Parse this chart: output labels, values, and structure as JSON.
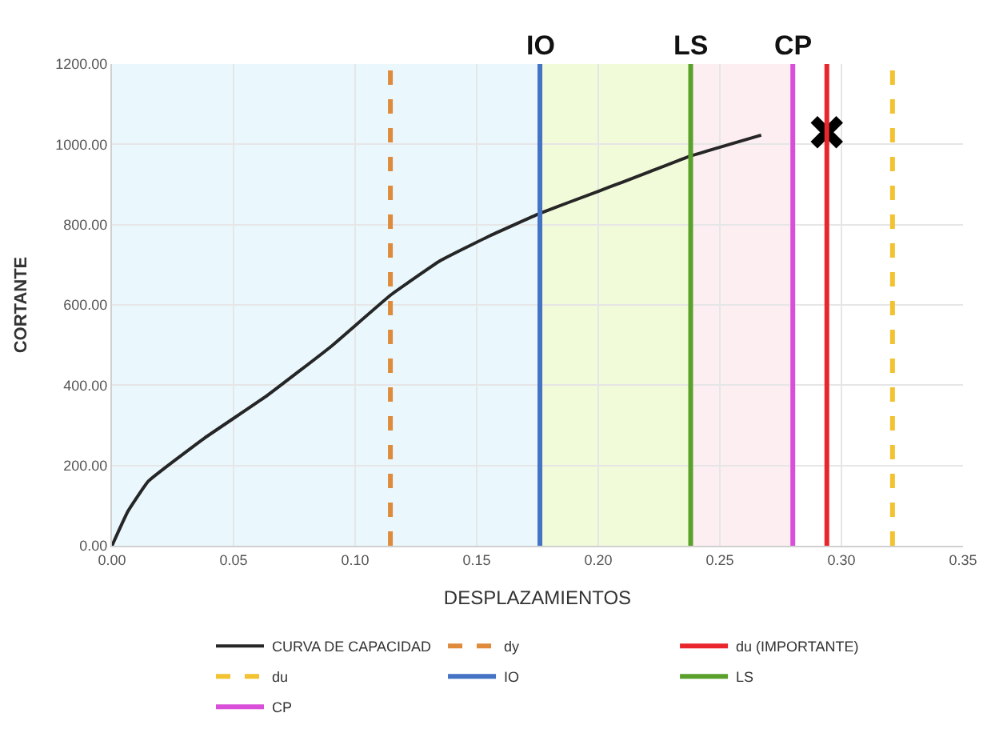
{
  "chart_data": {
    "type": "line",
    "xlabel": "DESPLAZAMIENTOS",
    "ylabel": "CORTANTE",
    "x": [
      0,
      0.0065,
      0.015,
      0.038,
      0.064,
      0.09,
      0.1145,
      0.135,
      0.155,
      0.176,
      0.2,
      0.22,
      0.238,
      0.267
    ],
    "series": [
      {
        "name": "CURVA DE CAPACIDAD",
        "color": "#262626",
        "values": [
          0,
          85,
          161,
          268,
          375,
          496,
          624,
          710,
          771,
          828,
          883,
          929,
          971,
          1023
        ]
      },
      {
        "type": "scatter",
        "color": "#000000",
        "marker": "cross",
        "x": [
          0.294
        ],
        "values": [
          1030
        ]
      }
    ],
    "ref_lines": [
      {
        "axis": "x",
        "value": 0.1145,
        "label": "dy",
        "color": "#e08a3c",
        "line_style": "dashed"
      },
      {
        "axis": "x",
        "value": 0.294,
        "label": "du (IMPORTANTE)",
        "color": "#e8262b",
        "line_style": "solid"
      },
      {
        "axis": "x",
        "value": 0.321,
        "label": "du",
        "color": "#f2c230",
        "line_style": "dashed"
      },
      {
        "axis": "x",
        "value": 0.176,
        "label": "IO",
        "color": "#4472c4",
        "line_style": "solid"
      },
      {
        "axis": "x",
        "value": 0.238,
        "label": "LS",
        "color": "#5aa02c",
        "line_style": "solid"
      },
      {
        "axis": "x",
        "value": 0.28,
        "label": "CP",
        "color": "#d94fd9",
        "line_style": "solid"
      }
    ],
    "bands": [
      {
        "axis": "x",
        "from": 0,
        "to": 0.176,
        "color": "#eaf8fd"
      },
      {
        "axis": "x",
        "from": 0.176,
        "to": 0.238,
        "color": "#f1fad9"
      },
      {
        "axis": "x",
        "from": 0.238,
        "to": 0.28,
        "color": "#fdeef2"
      }
    ],
    "annotations": [
      {
        "text": "IO",
        "x": 0.176,
        "y": 1200
      },
      {
        "text": "LS",
        "x": 0.238,
        "y": 1200
      },
      {
        "text": "CP",
        "x": 0.28,
        "y": 1200
      }
    ],
    "xlim": [
      0,
      0.35
    ],
    "xticks": [
      {
        "value": 0,
        "label": "0.00"
      },
      {
        "value": 0.05,
        "label": "0.05"
      },
      {
        "value": 0.1,
        "label": "0.10"
      },
      {
        "value": 0.15,
        "label": "0.15"
      },
      {
        "value": 0.2,
        "label": "0.20"
      },
      {
        "value": 0.25,
        "label": "0.25"
      },
      {
        "value": 0.3,
        "label": "0.30"
      },
      {
        "value": 0.35,
        "label": "0.35"
      }
    ],
    "ylim": [
      0,
      1200
    ],
    "yticks": [
      {
        "value": 0,
        "label": "0.00"
      },
      {
        "value": 200,
        "label": "200.00"
      },
      {
        "value": 400,
        "label": "400.00"
      },
      {
        "value": 600,
        "label": "600.00"
      },
      {
        "value": 800,
        "label": "800.00"
      },
      {
        "value": 1000,
        "label": "1000.00"
      },
      {
        "value": 1200,
        "label": "1200.00"
      }
    ],
    "grid": true,
    "legend": "bottom",
    "marker": "none",
    "line_style": "solid"
  }
}
